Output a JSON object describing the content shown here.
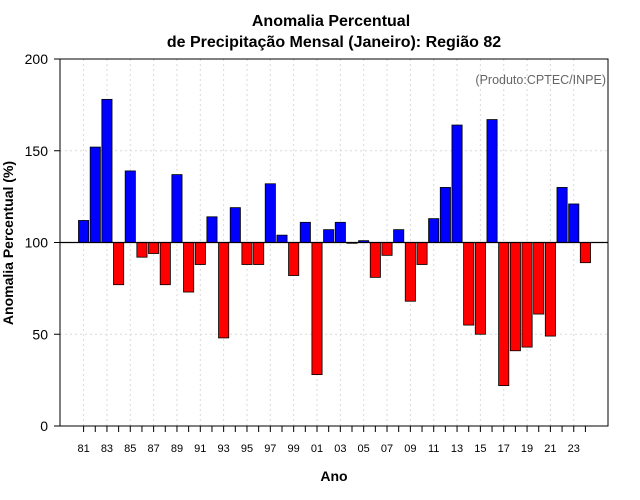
{
  "chart_data": {
    "type": "bar",
    "title_line1": "Anomalia Percentual",
    "title_line2": "de Precipitação Mensal (Janeiro): Região 82",
    "xlabel": "Ano",
    "ylabel": "Anomalia Percentual (%)",
    "source_note": "(Produto:CPTEC/INPE)",
    "ylim": [
      0,
      200
    ],
    "yticks": [
      0,
      50,
      100,
      150,
      200
    ],
    "baseline": 100,
    "grid": true,
    "colors": {
      "above": "#0000ff",
      "below": "#ff0000",
      "outline": "#000000",
      "grid": "#d9d9d9"
    },
    "categories": [
      "81",
      "82",
      "83",
      "84",
      "85",
      "86",
      "87",
      "88",
      "89",
      "90",
      "91",
      "92",
      "93",
      "94",
      "95",
      "96",
      "97",
      "98",
      "99",
      "00",
      "01",
      "02",
      "03",
      "04",
      "05",
      "06",
      "07",
      "08",
      "09",
      "10",
      "11",
      "12",
      "13",
      "14",
      "15",
      "16",
      "17",
      "18",
      "19",
      "20",
      "21",
      "22",
      "23",
      "24"
    ],
    "x_tick_labels": [
      "81",
      "83",
      "85",
      "87",
      "89",
      "91",
      "93",
      "95",
      "97",
      "99",
      "01",
      "03",
      "05",
      "07",
      "09",
      "11",
      "13",
      "15",
      "17",
      "19",
      "21",
      "23"
    ],
    "values": [
      112,
      152,
      178,
      77,
      139,
      92,
      94,
      77,
      137,
      73,
      88,
      114,
      48,
      119,
      88,
      88,
      132,
      104,
      82,
      111,
      28,
      107,
      111,
      100,
      101,
      81,
      93,
      107,
      68,
      88,
      113,
      130,
      164,
      55,
      50,
      167,
      22,
      41,
      43,
      61,
      49,
      130,
      121,
      89
    ]
  }
}
